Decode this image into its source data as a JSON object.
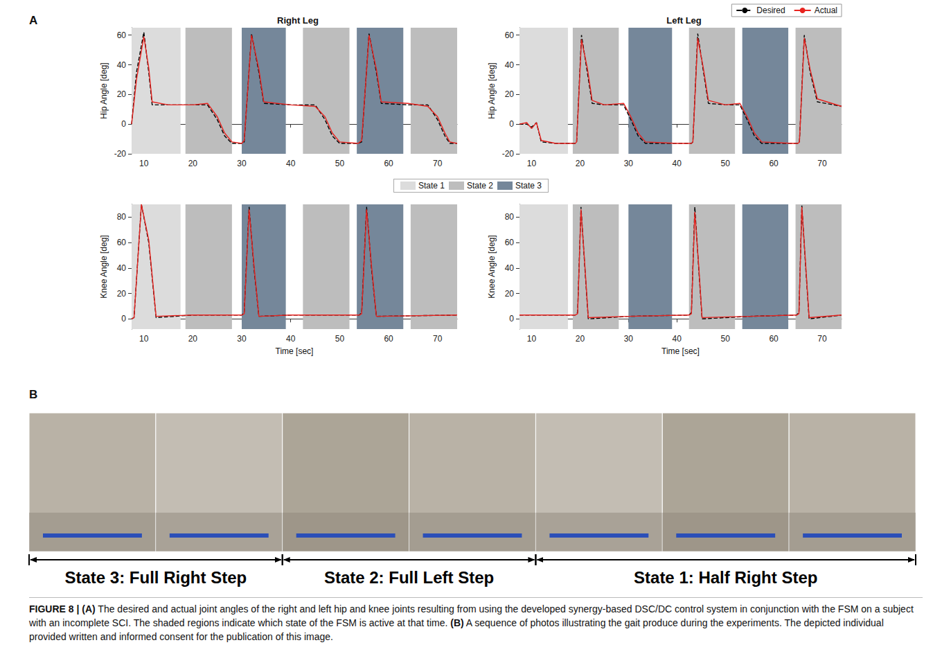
{
  "panel_letters": [
    "A",
    "B"
  ],
  "states": [
    {
      "name": "State 1",
      "color": "#dcdcdc"
    },
    {
      "name": "State 2",
      "color": "#bdbdbd"
    },
    {
      "name": "State 3",
      "color": "#75879a"
    }
  ],
  "chart_data": [
    {
      "type": "line",
      "title": "Right Leg",
      "ylabel": "Hip Angle [deg]",
      "xlim": [
        7.5,
        74
      ],
      "xticks": [
        10,
        20,
        30,
        40,
        50,
        60,
        70
      ],
      "ylim": [
        -20,
        65
      ],
      "yticks": [
        -20,
        0,
        20,
        40,
        60
      ],
      "grid": false,
      "regions": [
        {
          "state": "State 1",
          "start": 7.5,
          "end": 17.5
        },
        {
          "state": "State 2",
          "start": 18.5,
          "end": 28
        },
        {
          "state": "State 3",
          "start": 30,
          "end": 39
        },
        {
          "state": "State 2",
          "start": 42.5,
          "end": 52
        },
        {
          "state": "State 3",
          "start": 53.5,
          "end": 63
        },
        {
          "state": "State 2",
          "start": 64.5,
          "end": 74
        }
      ],
      "x": [
        7.5,
        8.5,
        10,
        11,
        11.7,
        15,
        20,
        23,
        25,
        26.5,
        28,
        30,
        30.5,
        32,
        33.5,
        34.5,
        40,
        45,
        47,
        48.5,
        50,
        53.8,
        54.5,
        56,
        57.5,
        58.5,
        64,
        68,
        70,
        71.5,
        72.5,
        74
      ],
      "series": [
        {
          "name": "Desired",
          "color": "#000000",
          "line_style": "dashed",
          "values": [
            0,
            35,
            62,
            35,
            13,
            13,
            13,
            13,
            3,
            -8,
            -13,
            -13,
            -12,
            61,
            35,
            14,
            13,
            13,
            3,
            -8,
            -13,
            -13,
            -12,
            61,
            35,
            14,
            13,
            13,
            3,
            -8,
            -13,
            -13
          ]
        },
        {
          "name": "Actual",
          "color": "#e8231f",
          "line_style": "solid",
          "values": [
            0,
            30,
            59,
            38,
            15,
            13,
            13,
            14,
            5,
            -6,
            -12,
            -13,
            -11,
            60,
            37,
            15,
            13,
            12,
            5,
            -6,
            -12,
            -13,
            -11,
            60,
            37,
            15,
            14,
            12,
            5,
            -6,
            -12,
            -13
          ]
        }
      ]
    },
    {
      "type": "line",
      "title": "Left Leg",
      "ylabel": "Hip Angle [deg]",
      "legend": "top-right",
      "xlim": [
        7.5,
        74
      ],
      "xticks": [
        10,
        20,
        30,
        40,
        50,
        60,
        70
      ],
      "ylim": [
        -20,
        65
      ],
      "yticks": [
        -20,
        0,
        20,
        40,
        60
      ],
      "grid": false,
      "regions": [
        {
          "state": "State 1",
          "start": 7.5,
          "end": 17.5
        },
        {
          "state": "State 2",
          "start": 18.5,
          "end": 28
        },
        {
          "state": "State 3",
          "start": 30,
          "end": 39
        },
        {
          "state": "State 2",
          "start": 42.5,
          "end": 52
        },
        {
          "state": "State 3",
          "start": 53.5,
          "end": 63
        },
        {
          "state": "State 2",
          "start": 64.5,
          "end": 74
        }
      ],
      "x": [
        7.5,
        9,
        10,
        11,
        12,
        15,
        19,
        19.3,
        20.3,
        21.5,
        22.5,
        25,
        29,
        30.5,
        32,
        33.5,
        40,
        43,
        43.3,
        44.3,
        45.5,
        46.5,
        50,
        53,
        54.5,
        56,
        57.5,
        64,
        65,
        65.3,
        66.3,
        67.5,
        69,
        74
      ],
      "series": [
        {
          "name": "Desired",
          "color": "#000000",
          "line_style": "dashed",
          "values": [
            0,
            0,
            -2,
            1,
            -12,
            -13,
            -13,
            -12,
            60,
            35,
            14,
            13,
            13,
            3,
            -8,
            -13,
            -13,
            -13,
            -12,
            61,
            35,
            14,
            13,
            13,
            3,
            -8,
            -13,
            -13,
            -13,
            -12,
            60,
            35,
            15,
            12
          ]
        },
        {
          "name": "Actual",
          "color": "#e8231f",
          "line_style": "solid",
          "values": [
            0,
            1,
            -3,
            1,
            -11,
            -13,
            -13,
            -12,
            57,
            38,
            16,
            13,
            14,
            5,
            -6,
            -12,
            -13,
            -13,
            -12,
            58,
            37,
            16,
            13,
            14,
            5,
            -6,
            -12,
            -13,
            -13,
            -12,
            58,
            37,
            17,
            12
          ]
        }
      ]
    },
    {
      "type": "line",
      "ylabel": "Knee Angle [deg]",
      "xlabel": "Time [sec]",
      "xlim": [
        7.5,
        74
      ],
      "xticks": [
        10,
        20,
        30,
        40,
        50,
        60,
        70
      ],
      "ylim": [
        -8,
        90
      ],
      "yticks": [
        0,
        20,
        40,
        60,
        80
      ],
      "grid": false,
      "regions": [
        {
          "state": "State 1",
          "start": 7.5,
          "end": 17.5
        },
        {
          "state": "State 2",
          "start": 18.5,
          "end": 28
        },
        {
          "state": "State 3",
          "start": 30,
          "end": 39
        },
        {
          "state": "State 2",
          "start": 42.5,
          "end": 52
        },
        {
          "state": "State 3",
          "start": 53.5,
          "end": 63
        },
        {
          "state": "State 2",
          "start": 64.5,
          "end": 74
        }
      ],
      "x": [
        7.5,
        8,
        9.5,
        11,
        12.5,
        20,
        30,
        30.5,
        31.5,
        32.5,
        33.5,
        40,
        54,
        54.5,
        55.5,
        56.5,
        57.5,
        74
      ],
      "series": [
        {
          "name": "Desired",
          "color": "#000000",
          "line_style": "dashed",
          "values": [
            0,
            1,
            90,
            60,
            1,
            3,
            3,
            5,
            88,
            40,
            2,
            3,
            3,
            5,
            88,
            40,
            2,
            3
          ]
        },
        {
          "name": "Actual",
          "color": "#e8231f",
          "line_style": "solid",
          "values": [
            0,
            1,
            90,
            62,
            2,
            3,
            3,
            4,
            86,
            42,
            2,
            3,
            3,
            4,
            86,
            42,
            2,
            3
          ]
        }
      ]
    },
    {
      "type": "line",
      "ylabel": "Knee Angle [deg]",
      "xlabel": "Time [sec]",
      "xlim": [
        7.5,
        74
      ],
      "xticks": [
        10,
        20,
        30,
        40,
        50,
        60,
        70
      ],
      "ylim": [
        -8,
        90
      ],
      "yticks": [
        0,
        20,
        40,
        60,
        80
      ],
      "grid": false,
      "regions": [
        {
          "state": "State 1",
          "start": 7.5,
          "end": 17.5
        },
        {
          "state": "State 2",
          "start": 18.5,
          "end": 28
        },
        {
          "state": "State 3",
          "start": 30,
          "end": 39
        },
        {
          "state": "State 2",
          "start": 42.5,
          "end": 52
        },
        {
          "state": "State 3",
          "start": 53.5,
          "end": 63
        },
        {
          "state": "State 2",
          "start": 64.5,
          "end": 74
        }
      ],
      "x": [
        7.5,
        19,
        19.5,
        20.2,
        21,
        21.7,
        30,
        42.5,
        43,
        43.7,
        44.5,
        45.2,
        55,
        64.7,
        65.2,
        65.8,
        66.6,
        67.3,
        74
      ],
      "series": [
        {
          "name": "Desired",
          "color": "#000000",
          "line_style": "dashed",
          "values": [
            3,
            3,
            5,
            88,
            40,
            0,
            2,
            3,
            5,
            88,
            40,
            0,
            2,
            3,
            5,
            89,
            40,
            0,
            3
          ]
        },
        {
          "name": "Actual",
          "color": "#e8231f",
          "line_style": "solid",
          "values": [
            3,
            3,
            4,
            86,
            42,
            1,
            2,
            3,
            4,
            84,
            42,
            1,
            2,
            3,
            4,
            88,
            42,
            1,
            3
          ]
        }
      ]
    }
  ],
  "photo_strip": {
    "segments": [
      {
        "label": "State 3: Full Right Step",
        "frames": 2
      },
      {
        "label": "State 2: Full Left Step",
        "frames": 2
      },
      {
        "label": "State 1: Half Right Step",
        "frames": 3
      }
    ]
  },
  "caption": [
    {
      "text": "FIGURE 8 | (A)",
      "bold": true
    },
    {
      "text": " The desired and actual joint angles of the right and left hip and knee joints resulting from using the developed synergy-based DSC/DC control system in conjunction with the FSM on a subject with an incomplete SCI. The shaded regions indicate which state of the FSM is active at that time. ",
      "bold": false
    },
    {
      "text": "(B)",
      "bold": true
    },
    {
      "text": " A sequence of photos illustrating the gait produce during the experiments. The depicted individual provided written and informed consent for the publication of this image.",
      "bold": false
    }
  ]
}
